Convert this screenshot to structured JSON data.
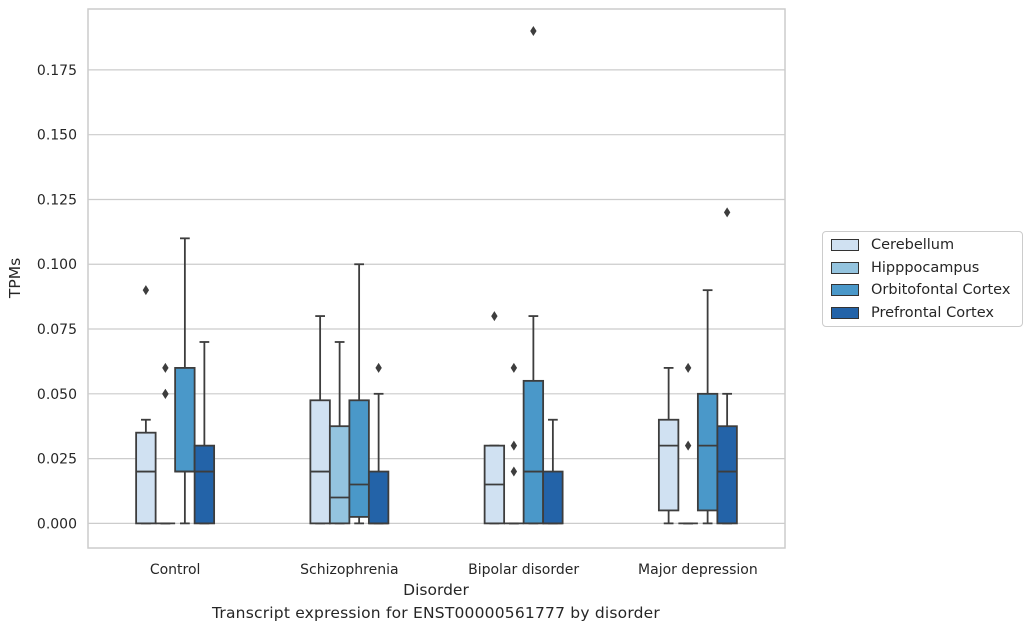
{
  "caption": "Transcript expression for ENST00000561777 by disorder",
  "chart_data": {
    "type": "boxplot",
    "xlabel": "Disorder",
    "ylabel": "TPMs",
    "ylim": [
      -0.0095,
      0.1985
    ],
    "yticks": [
      0.0,
      0.025,
      0.05,
      0.075,
      0.1,
      0.125,
      0.15,
      0.175
    ],
    "ytick_labels": [
      "0.000",
      "0.025",
      "0.050",
      "0.075",
      "0.100",
      "0.125",
      "0.150",
      "0.175"
    ],
    "grid": "horizontal",
    "legend_position": "right",
    "categories": [
      "Control",
      "Schizophrenia",
      "Bipolar disorder",
      "Major depression"
    ],
    "series": [
      {
        "name": "Cerebellum",
        "color": "#d0e1f2",
        "boxes": [
          {
            "whislo": 0.0,
            "q1": 0.0,
            "med": 0.02,
            "q3": 0.035,
            "whishi": 0.04,
            "fliers": [
              0.09
            ]
          },
          {
            "whislo": 0.0,
            "q1": 0.0,
            "med": 0.02,
            "q3": 0.0475,
            "whishi": 0.08,
            "fliers": []
          },
          {
            "whislo": 0.0,
            "q1": 0.0,
            "med": 0.015,
            "q3": 0.03,
            "whishi": 0.03,
            "fliers": [
              0.08
            ]
          },
          {
            "whislo": 0.0,
            "q1": 0.005,
            "med": 0.03,
            "q3": 0.04,
            "whishi": 0.06,
            "fliers": []
          }
        ]
      },
      {
        "name": "Hipppocampus",
        "color": "#94c4df",
        "boxes": [
          {
            "whislo": 0.0,
            "q1": 0.0,
            "med": 0.0,
            "q3": 0.0,
            "whishi": 0.0,
            "fliers": [
              0.05,
              0.05,
              0.06
            ]
          },
          {
            "whislo": 0.0,
            "q1": 0.0,
            "med": 0.01,
            "q3": 0.0375,
            "whishi": 0.07,
            "fliers": []
          },
          {
            "whislo": 0.0,
            "q1": 0.0,
            "med": 0.0,
            "q3": 0.0,
            "whishi": 0.0,
            "fliers": [
              0.02,
              0.03,
              0.06
            ]
          },
          {
            "whislo": 0.0,
            "q1": 0.0,
            "med": 0.0,
            "q3": 0.0,
            "whishi": 0.0,
            "fliers": [
              0.03,
              0.06
            ]
          }
        ]
      },
      {
        "name": "Orbitofontal Cortex",
        "color": "#4a98c9",
        "boxes": [
          {
            "whislo": 0.0,
            "q1": 0.02,
            "med": 0.02,
            "q3": 0.06,
            "whishi": 0.11,
            "fliers": []
          },
          {
            "whislo": 0.0,
            "q1": 0.0025,
            "med": 0.015,
            "q3": 0.0475,
            "whishi": 0.1,
            "fliers": []
          },
          {
            "whislo": 0.0,
            "q1": 0.0,
            "med": 0.02,
            "q3": 0.055,
            "whishi": 0.08,
            "fliers": [
              0.19
            ]
          },
          {
            "whislo": 0.0,
            "q1": 0.005,
            "med": 0.03,
            "q3": 0.05,
            "whishi": 0.09,
            "fliers": []
          }
        ]
      },
      {
        "name": "Prefrontal Cortex",
        "color": "#2363a8",
        "boxes": [
          {
            "whislo": 0.0,
            "q1": 0.0,
            "med": 0.02,
            "q3": 0.03,
            "whishi": 0.07,
            "fliers": []
          },
          {
            "whislo": 0.0,
            "q1": 0.0,
            "med": 0.0,
            "q3": 0.02,
            "whishi": 0.05,
            "fliers": [
              0.06
            ]
          },
          {
            "whislo": 0.0,
            "q1": 0.0,
            "med": 0.0,
            "q3": 0.02,
            "whishi": 0.04,
            "fliers": []
          },
          {
            "whislo": 0.0,
            "q1": 0.0,
            "med": 0.02,
            "q3": 0.0375,
            "whishi": 0.05,
            "fliers": [
              0.12
            ]
          }
        ]
      }
    ]
  }
}
